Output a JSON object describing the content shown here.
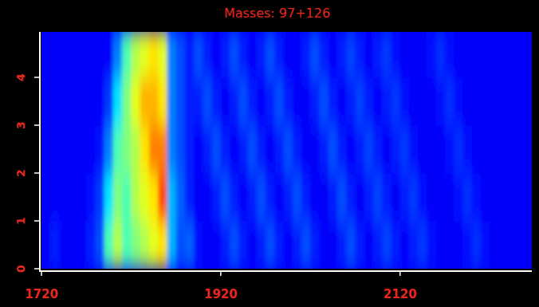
{
  "chart_data": {
    "type": "heatmap",
    "title": "Masses: 97+126",
    "xlim": [
      1720,
      2267
    ],
    "ylim": [
      0,
      4.95
    ],
    "xticks": [
      1720,
      1920,
      2120
    ],
    "yticks": [
      0,
      1,
      2,
      3,
      4
    ],
    "zlim": [
      0,
      10
    ],
    "x_bins": [
      1720,
      1730,
      1740,
      1750,
      1760,
      1770,
      1780,
      1790,
      1800,
      1810,
      1820,
      1830,
      1840,
      1850,
      1860,
      1870,
      1880,
      1890,
      1900,
      1910,
      1920,
      1930,
      1940,
      1950,
      1960,
      1970,
      1980,
      1990,
      2000,
      2010,
      2020,
      2030,
      2040,
      2050,
      2060,
      2070,
      2080,
      2090,
      2100,
      2110,
      2120,
      2130,
      2140,
      2150,
      2160,
      2170,
      2180,
      2190,
      2200,
      2210,
      2220,
      2230,
      2240,
      2250,
      2260,
      2270
    ],
    "y_bins": [
      0,
      1,
      2,
      3,
      4,
      5
    ],
    "cells": [
      [
        1.2,
        1.5,
        1.2,
        1.2,
        1.2,
        1.5,
        2,
        4.5,
        5.5,
        4.5,
        5,
        5.5,
        6,
        6.5,
        3,
        2,
        2.2,
        1.4,
        1.2,
        1.2,
        1.5,
        2,
        1.5,
        1.2,
        1.5,
        2,
        1.5,
        1.2,
        1.5,
        2,
        1.5,
        1.2,
        1.2,
        1.5,
        2,
        1.5,
        1.2,
        1.5,
        1.9,
        1.5,
        1.2,
        1.5,
        1.8,
        1.4,
        1.2,
        1.2,
        1.2,
        1.4,
        1.7,
        1.4,
        1.2,
        1.2,
        1.2,
        1.2,
        1.2
      ],
      [
        1.2,
        1.2,
        1.2,
        1.2,
        1.2,
        1.4,
        1.8,
        3.5,
        5,
        4.5,
        5.5,
        6,
        6.5,
        8,
        3,
        2.2,
        1.5,
        1.2,
        1.2,
        1.5,
        2,
        1.5,
        1.2,
        1.5,
        2,
        1.5,
        1.2,
        1.5,
        2,
        1.5,
        1.2,
        1.2,
        1.5,
        2,
        1.5,
        1.2,
        1.5,
        1.9,
        1.5,
        1.2,
        1.5,
        1.8,
        1.4,
        1.2,
        1.2,
        1.2,
        1.4,
        1.7,
        1.4,
        1.2,
        1.2,
        1.2,
        1.2,
        1.2,
        1.2
      ],
      [
        1.2,
        1.2,
        1.2,
        1.2,
        1.2,
        1.2,
        1.4,
        2.5,
        4.5,
        5,
        5.5,
        6.5,
        7.5,
        7.5,
        2.5,
        2,
        1.5,
        1.2,
        1.5,
        2,
        1.5,
        1.2,
        1.5,
        2,
        1.5,
        1.2,
        1.5,
        2,
        1.5,
        1.2,
        1.2,
        1.5,
        2,
        1.5,
        1.2,
        1.5,
        1.9,
        1.5,
        1.2,
        1.5,
        1.8,
        1.4,
        1.2,
        1.2,
        1.2,
        1.4,
        1.7,
        1.4,
        1.2,
        1.2,
        1.2,
        1.2,
        1.2,
        1.2,
        1.2
      ],
      [
        1.2,
        1.2,
        1.2,
        1.2,
        1.2,
        1.2,
        1.2,
        1.8,
        3.5,
        5,
        6,
        7,
        7,
        6.5,
        2.5,
        2,
        1.5,
        1.5,
        2,
        1.5,
        1.2,
        1.5,
        2,
        1.5,
        1.2,
        1.5,
        2,
        1.5,
        1.2,
        1.2,
        1.5,
        2,
        1.5,
        1.2,
        1.5,
        1.9,
        1.5,
        1.2,
        1.5,
        1.8,
        1.4,
        1.2,
        1.2,
        1.2,
        1.4,
        1.7,
        1.4,
        1.2,
        1.2,
        1.2,
        1.2,
        1.2,
        1.2,
        1.2,
        1.2
      ],
      [
        1.2,
        1.2,
        1.2,
        1.2,
        1.2,
        1.2,
        1.2,
        1.2,
        2.5,
        4.5,
        5.5,
        6,
        6.5,
        6,
        2.5,
        2,
        1.5,
        2,
        1.5,
        1.2,
        1.5,
        2,
        1.5,
        1.2,
        1.5,
        2,
        1.5,
        1.2,
        1.2,
        1.5,
        2,
        1.5,
        1.2,
        1.5,
        1.9,
        1.5,
        1.2,
        1.5,
        1.8,
        1.4,
        1.2,
        1.2,
        1.2,
        1.4,
        1.7,
        1.4,
        1.2,
        1.2,
        1.2,
        1.2,
        1.2,
        1.2,
        1.2,
        1.2,
        1.2
      ]
    ]
  }
}
